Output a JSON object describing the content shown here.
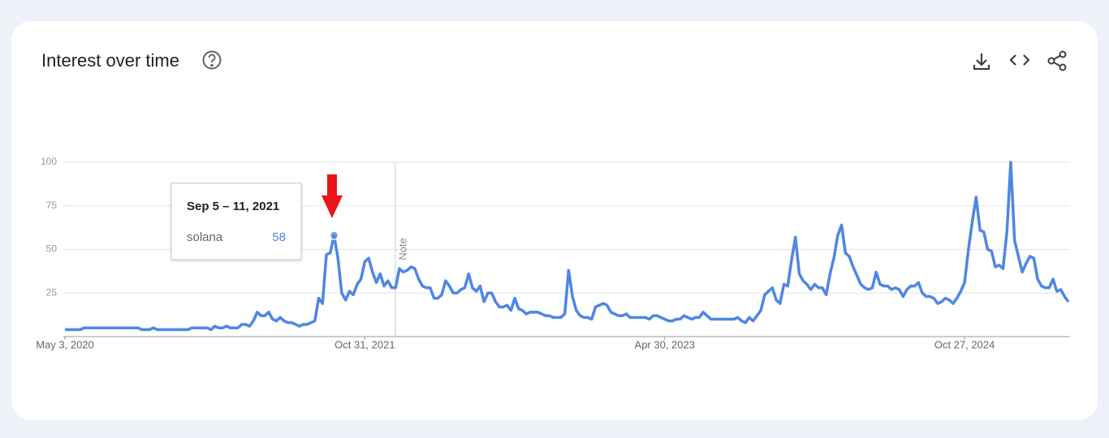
{
  "chart_data": {
    "type": "line",
    "title": "Interest over time",
    "note": "Note",
    "tooltip_title": "Sep 5 – 11, 2021",
    "categories": [
      "May 3, 2020",
      null,
      null,
      null,
      null,
      null,
      null,
      null,
      null,
      null,
      null,
      null,
      null,
      null,
      null,
      null,
      null,
      null,
      null,
      null,
      null,
      null,
      null,
      null,
      null,
      null,
      null,
      null,
      null,
      null,
      null,
      null,
      null,
      null,
      null,
      null,
      null,
      null,
      null,
      null,
      null,
      null,
      null,
      null,
      null,
      null,
      null,
      null,
      null,
      null,
      null,
      null,
      null,
      null,
      null,
      null,
      null,
      null,
      null,
      null,
      null,
      null,
      null,
      null,
      null,
      null,
      null,
      null,
      null,
      null,
      null,
      null,
      null,
      null,
      null,
      null,
      null,
      null,
      "Oct 31, 2021",
      null,
      null,
      null,
      null,
      null,
      null,
      null,
      null,
      null,
      null,
      null,
      null,
      null,
      null,
      null,
      null,
      null,
      null,
      null,
      null,
      null,
      null,
      null,
      null,
      null,
      null,
      null,
      null,
      null,
      null,
      null,
      null,
      null,
      null,
      null,
      null,
      null,
      null,
      null,
      null,
      null,
      null,
      null,
      null,
      null,
      null,
      null,
      null,
      null,
      null,
      null,
      null,
      null,
      null,
      null,
      null,
      null,
      null,
      null,
      null,
      null,
      null,
      null,
      null,
      null,
      null,
      null,
      null,
      null,
      null,
      null,
      null,
      null,
      null,
      null,
      null,
      null,
      "Apr 30, 2023",
      null,
      null,
      null,
      null,
      null,
      null,
      null,
      null,
      null,
      null,
      null,
      null,
      null,
      null,
      null,
      null,
      null,
      null,
      null,
      null,
      null,
      null,
      null,
      null,
      null,
      null,
      null,
      null,
      null,
      null,
      null,
      null,
      null,
      null,
      null,
      null,
      null,
      null,
      null,
      null,
      null,
      null,
      null,
      null,
      null,
      null,
      null,
      null,
      null,
      null,
      null,
      null,
      null,
      null,
      null,
      null,
      null,
      null,
      null,
      null,
      null,
      null,
      null,
      null,
      null,
      null,
      null,
      null,
      null,
      null,
      null,
      null,
      null,
      null,
      null,
      null,
      null,
      "Oct 27, 2024",
      null,
      null,
      null,
      null,
      null,
      null,
      null,
      null,
      null,
      null,
      null,
      null,
      null,
      null,
      null,
      null,
      null,
      null,
      null,
      null,
      null,
      null,
      null,
      null,
      null,
      null,
      null
    ],
    "series": [
      {
        "name": "solana",
        "color": "#4e86e4",
        "values": [
          4,
          4,
          4,
          4,
          4,
          5,
          5,
          5,
          5,
          5,
          5,
          5,
          5,
          5,
          5,
          5,
          5,
          5,
          5,
          5,
          4,
          4,
          4,
          5,
          4,
          4,
          4,
          4,
          4,
          4,
          4,
          4,
          4,
          5,
          5,
          5,
          5,
          5,
          4,
          6,
          5,
          5,
          6,
          5,
          5,
          5,
          7,
          7,
          6,
          9,
          14,
          12,
          12,
          14,
          10,
          9,
          11,
          9,
          8,
          8,
          7,
          6,
          7,
          7,
          8,
          9,
          22,
          19,
          47,
          48,
          58,
          45,
          25,
          21,
          26,
          24,
          30,
          33,
          43,
          45,
          37,
          31,
          36,
          29,
          32,
          28,
          28,
          39,
          37,
          38,
          40,
          39,
          33,
          29,
          28,
          28,
          22,
          22,
          24,
          32,
          29,
          25,
          25,
          27,
          28,
          36,
          28,
          26,
          29,
          20,
          25,
          25,
          20,
          17,
          17,
          18,
          15,
          22,
          16,
          15,
          13,
          14,
          14,
          14,
          13,
          12,
          12,
          11,
          11,
          11,
          13,
          38,
          23,
          15,
          12,
          11,
          11,
          10,
          17,
          18,
          19,
          18,
          14,
          13,
          12,
          12,
          13,
          11,
          11,
          11,
          11,
          11,
          10,
          12,
          12,
          11,
          10,
          9,
          9,
          10,
          10,
          12,
          11,
          10,
          11,
          11,
          14,
          12,
          10,
          10,
          10,
          10,
          10,
          10,
          10,
          11,
          9,
          8,
          11,
          9,
          12,
          15,
          24,
          26,
          28,
          21,
          19,
          30,
          29,
          44,
          57,
          36,
          32,
          30,
          27,
          30,
          28,
          28,
          24,
          36,
          45,
          58,
          64,
          48,
          46,
          40,
          35,
          30,
          28,
          27,
          28,
          37,
          30,
          29,
          29,
          27,
          28,
          27,
          23,
          27,
          29,
          29,
          31,
          25,
          23,
          23,
          22,
          19,
          20,
          22,
          21,
          19,
          22,
          26,
          31,
          50,
          66,
          80,
          61,
          60,
          50,
          49,
          40,
          41,
          39,
          60,
          100,
          55,
          46,
          37,
          42,
          46,
          45,
          33,
          29,
          28,
          28,
          33,
          26,
          27,
          23,
          20
        ]
      }
    ],
    "ylim": [
      0,
      100
    ],
    "yticks": [
      25,
      50,
      75,
      100
    ],
    "grid": true
  }
}
